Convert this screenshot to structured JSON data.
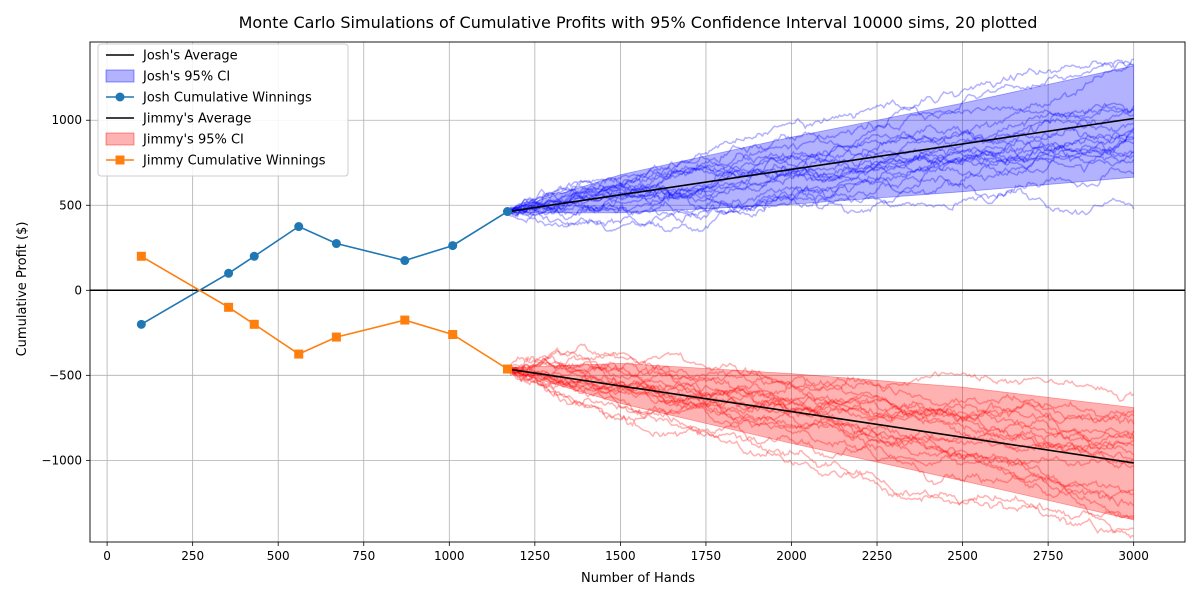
{
  "chart_data": {
    "type": "line",
    "title": "Monte Carlo Simulations of Cumulative Profits with 95% Confidence Interval 10000 sims, 20 plotted",
    "xlabel": "Number of Hands",
    "ylabel": "Cumulative Profit ($)",
    "xlim": [
      -50,
      3150
    ],
    "ylim": [
      -1480,
      1460
    ],
    "xticks": [
      0,
      250,
      500,
      750,
      1000,
      1250,
      1500,
      1750,
      2000,
      2250,
      2500,
      2750,
      3000
    ],
    "yticks": [
      -1000,
      -500,
      0,
      500,
      1000
    ],
    "grid": true,
    "legend_position": "upper-left",
    "zero_line": 0,
    "series": [
      {
        "name": "Josh's Average",
        "kind": "line",
        "color": "#000000",
        "x": [
          1170,
          3000
        ],
        "y": [
          463,
          1010
        ]
      },
      {
        "name": "Josh's 95% CI",
        "kind": "band",
        "color": "#0000ff",
        "x": [
          1170,
          1500,
          2000,
          2500,
          3000
        ],
        "lower": [
          455,
          455,
          505,
          580,
          665
        ],
        "upper": [
          470,
          680,
          900,
          1100,
          1320
        ]
      },
      {
        "name": "Josh Cumulative Winnings",
        "kind": "line-marker",
        "marker": "circle",
        "color": "#1f77b4",
        "x": [
          100,
          355,
          430,
          560,
          670,
          870,
          1010,
          1170
        ],
        "y": [
          -200,
          100,
          200,
          375,
          275,
          175,
          263,
          463
        ]
      },
      {
        "name": "Jimmy's Average",
        "kind": "line",
        "color": "#000000",
        "x": [
          1170,
          3000
        ],
        "y": [
          -463,
          -1015
        ]
      },
      {
        "name": "Jimmy's 95% CI",
        "kind": "band",
        "color": "#ff0000",
        "x": [
          1170,
          1500,
          2000,
          2500,
          3000
        ],
        "lower": [
          -470,
          -665,
          -900,
          -1120,
          -1350
        ],
        "upper": [
          -455,
          -430,
          -490,
          -570,
          -690
        ]
      },
      {
        "name": "Jimmy Cumulative Winnings",
        "kind": "line-marker",
        "marker": "square",
        "color": "#ff7f0e",
        "x": [
          100,
          355,
          430,
          560,
          670,
          870,
          1010,
          1170
        ],
        "y": [
          200,
          -100,
          -200,
          -375,
          -275,
          -175,
          -260,
          -463
        ]
      }
    ],
    "simulation_paths": {
      "count_per_player": 20,
      "x_start": 1170,
      "x_end": 3000,
      "josh_color": "#0000ff",
      "jimmy_color": "#ff0000"
    }
  }
}
